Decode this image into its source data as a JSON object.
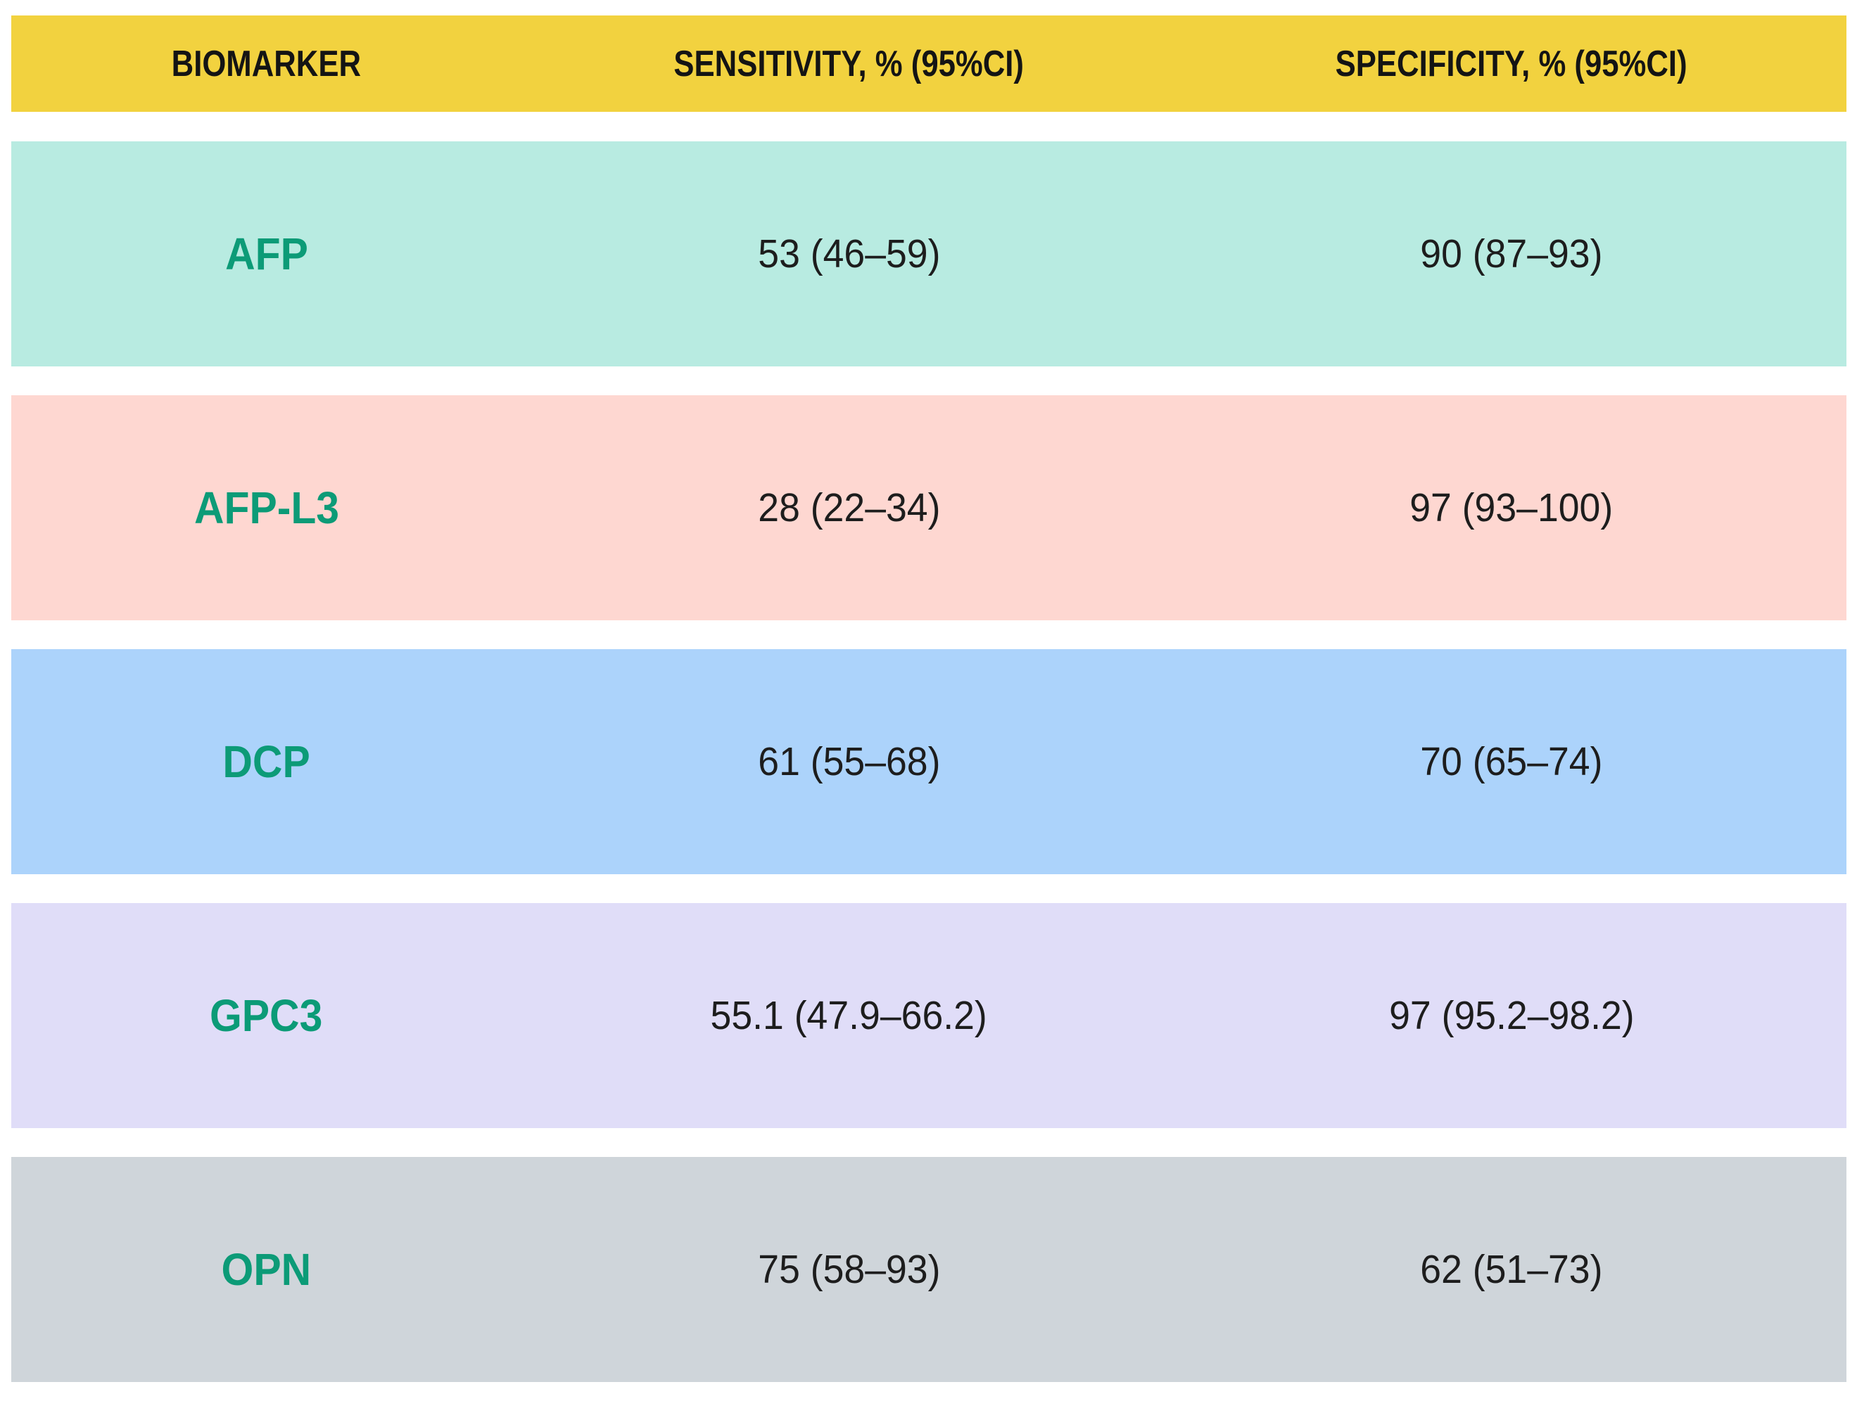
{
  "table": {
    "columns": [
      {
        "label": "BIOMARKER"
      },
      {
        "label": "SENSITIVITY, % (95%CI)"
      },
      {
        "label": "SPECIFICITY, % (95%CI)"
      }
    ],
    "rows": [
      {
        "biomarker": "AFP",
        "sensitivity": "53 (46–59)",
        "specificity": "90 (87–93)",
        "row_color": "#b8ebe1"
      },
      {
        "biomarker": "AFP-L3",
        "sensitivity": "28 (22–34)",
        "specificity": "97 (93–100)",
        "row_color": "#fed7d1"
      },
      {
        "biomarker": "DCP",
        "sensitivity": "61 (55–68)",
        "specificity": "70 (65–74)",
        "row_color": "#acd3fb"
      },
      {
        "biomarker": "GPC3",
        "sensitivity": "55.1 (47.9–66.2)",
        "specificity": "97 (95.2–98.2)",
        "row_color": "#e0ddf8"
      },
      {
        "biomarker": "OPN",
        "sensitivity": "75 (58–93)",
        "specificity": "62 (51–73)",
        "row_color": "#cfd5da"
      }
    ],
    "colors": {
      "header_bg": "#f2d23f",
      "header_text": "#141414",
      "biomarker_text": "#0c9b77",
      "value_text": "#1d1d1d",
      "page_bg": "#ffffff"
    }
  },
  "chart_data": {
    "type": "table",
    "title": "",
    "columns": [
      "BIOMARKER",
      "SENSITIVITY, % (95%CI)",
      "SPECIFICITY, % (95%CI)"
    ],
    "rows": [
      [
        "AFP",
        "53 (46–59)",
        "90 (87–93)"
      ],
      [
        "AFP-L3",
        "28 (22–34)",
        "97 (93–100)"
      ],
      [
        "DCP",
        "61 (55–68)",
        "70 (65–74)"
      ],
      [
        "GPC3",
        "55.1 (47.9–66.2)",
        "97 (95.2–98.2)"
      ],
      [
        "OPN",
        "75 (58–93)",
        "62 (51–73)"
      ]
    ],
    "layout_hints": {
      "header_bg": "#f2d23f",
      "row_bg_colors": [
        "#b8ebe1",
        "#fed7d1",
        "#acd3fb",
        "#e0ddf8",
        "#cfd5da"
      ],
      "biomarker_name_color": "#0c9b77",
      "text_align": "center"
    }
  }
}
